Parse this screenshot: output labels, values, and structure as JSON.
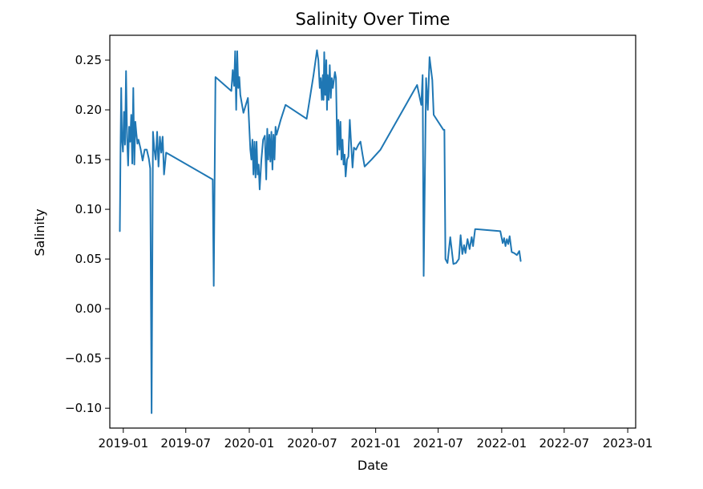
{
  "chart_data": {
    "type": "line",
    "title": "Salinity Over Time",
    "xlabel": "Date",
    "ylabel": "Salinity",
    "x_type": "date",
    "xlim": [
      "2018-11-23",
      "2023-01-24"
    ],
    "ylim": [
      -0.12,
      0.275
    ],
    "grid": false,
    "x_ticks": [
      {
        "value": "2019-01-01",
        "label": "2019-01"
      },
      {
        "value": "2019-07-01",
        "label": "2019-07"
      },
      {
        "value": "2020-01-01",
        "label": "2020-01"
      },
      {
        "value": "2020-07-01",
        "label": "2020-07"
      },
      {
        "value": "2021-01-01",
        "label": "2021-01"
      },
      {
        "value": "2021-07-01",
        "label": "2021-07"
      },
      {
        "value": "2022-01-01",
        "label": "2022-01"
      },
      {
        "value": "2022-07-01",
        "label": "2022-07"
      },
      {
        "value": "2023-01-01",
        "label": "2023-01"
      }
    ],
    "y_ticks": [
      {
        "value": 0.25,
        "label": "0.25"
      },
      {
        "value": 0.2,
        "label": "0.20"
      },
      {
        "value": 0.15,
        "label": "0.15"
      },
      {
        "value": 0.1,
        "label": "0.10"
      },
      {
        "value": 0.05,
        "label": "0.05"
      },
      {
        "value": 0.0,
        "label": "0.00"
      },
      {
        "value": -0.05,
        "label": "−0.05"
      },
      {
        "value": -0.1,
        "label": "−0.10"
      }
    ],
    "series": [
      {
        "color": "#1f77b4",
        "points": [
          [
            "2018-12-22",
            0.078
          ],
          [
            "2018-12-24",
            0.16
          ],
          [
            "2018-12-26",
            0.222
          ],
          [
            "2018-12-28",
            0.172
          ],
          [
            "2018-12-31",
            0.158
          ],
          [
            "2019-01-03",
            0.198
          ],
          [
            "2019-01-06",
            0.165
          ],
          [
            "2019-01-09",
            0.239
          ],
          [
            "2019-01-12",
            0.172
          ],
          [
            "2019-01-15",
            0.144
          ],
          [
            "2019-01-18",
            0.183
          ],
          [
            "2019-01-21",
            0.168
          ],
          [
            "2019-01-24",
            0.195
          ],
          [
            "2019-01-27",
            0.146
          ],
          [
            "2019-01-30",
            0.222
          ],
          [
            "2019-02-02",
            0.145
          ],
          [
            "2019-02-05",
            0.188
          ],
          [
            "2019-02-08",
            0.176
          ],
          [
            "2019-02-11",
            0.166
          ],
          [
            "2019-02-14",
            0.17
          ],
          [
            "2019-02-20",
            0.161
          ],
          [
            "2019-02-26",
            0.149
          ],
          [
            "2019-03-04",
            0.16
          ],
          [
            "2019-03-10",
            0.16
          ],
          [
            "2019-03-16",
            0.151
          ],
          [
            "2019-03-20",
            0.141
          ],
          [
            "2019-03-24",
            -0.105
          ],
          [
            "2019-03-28",
            0.178
          ],
          [
            "2019-04-01",
            0.16
          ],
          [
            "2019-04-05",
            0.15
          ],
          [
            "2019-04-09",
            0.178
          ],
          [
            "2019-04-13",
            0.143
          ],
          [
            "2019-04-17",
            0.173
          ],
          [
            "2019-04-21",
            0.157
          ],
          [
            "2019-04-25",
            0.173
          ],
          [
            "2019-04-29",
            0.135
          ],
          [
            "2019-05-05",
            0.157
          ],
          [
            "2019-09-17",
            0.13
          ],
          [
            "2019-09-20",
            0.023
          ],
          [
            "2019-09-25",
            0.233
          ],
          [
            "2019-11-10",
            0.219
          ],
          [
            "2019-11-14",
            0.24
          ],
          [
            "2019-11-18",
            0.224
          ],
          [
            "2019-11-21",
            0.259
          ],
          [
            "2019-11-24",
            0.2
          ],
          [
            "2019-11-27",
            0.259
          ],
          [
            "2019-11-30",
            0.222
          ],
          [
            "2019-12-03",
            0.233
          ],
          [
            "2019-12-06",
            0.215
          ],
          [
            "2019-12-15",
            0.197
          ],
          [
            "2019-12-28",
            0.212
          ],
          [
            "2020-01-04",
            0.16
          ],
          [
            "2020-01-07",
            0.15
          ],
          [
            "2020-01-10",
            0.17
          ],
          [
            "2020-01-13",
            0.135
          ],
          [
            "2020-01-16",
            0.168
          ],
          [
            "2020-01-19",
            0.132
          ],
          [
            "2020-01-22",
            0.168
          ],
          [
            "2020-01-25",
            0.135
          ],
          [
            "2020-01-28",
            0.145
          ],
          [
            "2020-01-31",
            0.12
          ],
          [
            "2020-02-05",
            0.15
          ],
          [
            "2020-02-10",
            0.17
          ],
          [
            "2020-02-15",
            0.174
          ],
          [
            "2020-02-19",
            0.13
          ],
          [
            "2020-02-22",
            0.181
          ],
          [
            "2020-02-25",
            0.15
          ],
          [
            "2020-02-28",
            0.175
          ],
          [
            "2020-03-02",
            0.148
          ],
          [
            "2020-03-05",
            0.178
          ],
          [
            "2020-03-08",
            0.14
          ],
          [
            "2020-03-11",
            0.175
          ],
          [
            "2020-03-14",
            0.15
          ],
          [
            "2020-03-17",
            0.183
          ],
          [
            "2020-03-20",
            0.175
          ],
          [
            "2020-04-01",
            0.19
          ],
          [
            "2020-04-15",
            0.205
          ],
          [
            "2020-06-15",
            0.191
          ],
          [
            "2020-07-05",
            0.235
          ],
          [
            "2020-07-15",
            0.26
          ],
          [
            "2020-07-19",
            0.25
          ],
          [
            "2020-07-23",
            0.222
          ],
          [
            "2020-07-26",
            0.232
          ],
          [
            "2020-07-29",
            0.21
          ],
          [
            "2020-08-01",
            0.235
          ],
          [
            "2020-08-03",
            0.21
          ],
          [
            "2020-08-05",
            0.258
          ],
          [
            "2020-08-08",
            0.215
          ],
          [
            "2020-08-11",
            0.25
          ],
          [
            "2020-08-13",
            0.2
          ],
          [
            "2020-08-15",
            0.235
          ],
          [
            "2020-08-18",
            0.21
          ],
          [
            "2020-08-21",
            0.245
          ],
          [
            "2020-08-24",
            0.212
          ],
          [
            "2020-08-27",
            0.232
          ],
          [
            "2020-08-30",
            0.222
          ],
          [
            "2020-09-05",
            0.238
          ],
          [
            "2020-09-08",
            0.232
          ],
          [
            "2020-09-12",
            0.155
          ],
          [
            "2020-09-15",
            0.19
          ],
          [
            "2020-09-18",
            0.16
          ],
          [
            "2020-09-21",
            0.188
          ],
          [
            "2020-09-24",
            0.15
          ],
          [
            "2020-09-27",
            0.17
          ],
          [
            "2020-09-30",
            0.145
          ],
          [
            "2020-10-03",
            0.155
          ],
          [
            "2020-10-06",
            0.133
          ],
          [
            "2020-10-10",
            0.15
          ],
          [
            "2020-10-14",
            0.153
          ],
          [
            "2020-10-18",
            0.19
          ],
          [
            "2020-10-22",
            0.165
          ],
          [
            "2020-10-26",
            0.142
          ],
          [
            "2020-10-30",
            0.162
          ],
          [
            "2020-11-05",
            0.16
          ],
          [
            "2020-11-12",
            0.165
          ],
          [
            "2020-11-18",
            0.168
          ],
          [
            "2020-11-24",
            0.155
          ],
          [
            "2020-11-30",
            0.143
          ],
          [
            "2020-12-20",
            0.15
          ],
          [
            "2021-01-15",
            0.16
          ],
          [
            "2021-05-01",
            0.225
          ],
          [
            "2021-05-13",
            0.205
          ],
          [
            "2021-05-17",
            0.235
          ],
          [
            "2021-05-20",
            0.033
          ],
          [
            "2021-05-27",
            0.232
          ],
          [
            "2021-06-01",
            0.2
          ],
          [
            "2021-06-06",
            0.253
          ],
          [
            "2021-06-14",
            0.23
          ],
          [
            "2021-06-18",
            0.195
          ],
          [
            "2021-07-16",
            0.18
          ],
          [
            "2021-07-19",
            0.18
          ],
          [
            "2021-07-22",
            0.05
          ],
          [
            "2021-07-28",
            0.046
          ],
          [
            "2021-08-05",
            0.072
          ],
          [
            "2021-08-14",
            0.045
          ],
          [
            "2021-08-22",
            0.046
          ],
          [
            "2021-08-30",
            0.05
          ],
          [
            "2021-09-04",
            0.074
          ],
          [
            "2021-09-09",
            0.055
          ],
          [
            "2021-09-14",
            0.064
          ],
          [
            "2021-09-18",
            0.056
          ],
          [
            "2021-09-24",
            0.07
          ],
          [
            "2021-09-30",
            0.06
          ],
          [
            "2021-10-06",
            0.072
          ],
          [
            "2021-10-10",
            0.063
          ],
          [
            "2021-10-16",
            0.08
          ],
          [
            "2021-10-20",
            0.08
          ],
          [
            "2021-12-28",
            0.078
          ],
          [
            "2022-01-04",
            0.066
          ],
          [
            "2022-01-08",
            0.071
          ],
          [
            "2022-01-12",
            0.063
          ],
          [
            "2022-01-16",
            0.07
          ],
          [
            "2022-01-20",
            0.065
          ],
          [
            "2022-01-24",
            0.073
          ],
          [
            "2022-01-30",
            0.057
          ],
          [
            "2022-02-06",
            0.056
          ],
          [
            "2022-02-14",
            0.054
          ],
          [
            "2022-02-21",
            0.058
          ],
          [
            "2022-02-25",
            0.048
          ]
        ]
      }
    ]
  }
}
